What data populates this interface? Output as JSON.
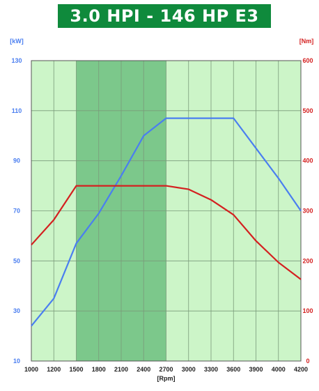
{
  "title": "3.0 HPI - 146 HP E3",
  "colors": {
    "banner": "#0f8a3c",
    "plot_background": "#ccf5c8",
    "highlight_band": "#7cc88b",
    "power_line": "#4a7ef0",
    "torque_line": "#d42020",
    "left_axis_text": "#4a7ef0",
    "right_axis_text": "#d42020"
  },
  "chart_data": {
    "type": "line",
    "title": "3.0 HPI - 146 HP E3",
    "xlabel": "[Rpm]",
    "ylabel_left": "[kW]",
    "ylabel_right": "[Nm]",
    "x_ticks": [
      "1000",
      "1200",
      "1500",
      "1800",
      "2100",
      "2400",
      "2700",
      "3000",
      "3300",
      "3600",
      "3900",
      "4000",
      "4200"
    ],
    "y_left_ticks": [
      "10",
      "30",
      "50",
      "70",
      "90",
      "110",
      "130"
    ],
    "y_right_ticks": [
      "0",
      "100",
      "200",
      "300",
      "400",
      "500",
      "600"
    ],
    "ylim_left": [
      10,
      130
    ],
    "ylim_right": [
      0,
      600
    ],
    "grid": true,
    "highlight_band": {
      "from": "1500",
      "to": "2700"
    },
    "series": [
      {
        "axis": "left",
        "x": [
          "1000",
          "1200",
          "1500",
          "1800",
          "2100",
          "2400",
          "2700",
          "3000",
          "3300",
          "3600",
          "3900",
          "4000",
          "4200"
        ],
        "values": [
          24,
          35,
          57,
          69,
          84,
          100,
          107,
          107,
          107,
          107,
          95,
          83,
          70
        ]
      },
      {
        "axis": "right",
        "x": [
          "1000",
          "1200",
          "1500",
          "1800",
          "2100",
          "2400",
          "2700",
          "3000",
          "3300",
          "3600",
          "3900",
          "4000",
          "4200"
        ],
        "values": [
          232,
          282,
          350,
          350,
          350,
          350,
          350,
          343,
          322,
          292,
          240,
          197,
          163
        ]
      }
    ]
  }
}
